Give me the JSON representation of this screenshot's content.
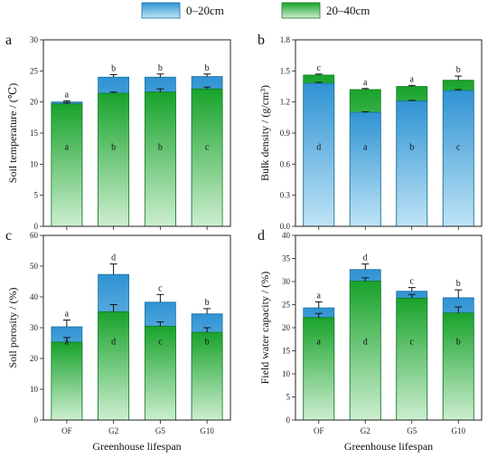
{
  "colors": {
    "shallow_top": "#2f93d3",
    "shallow_bottom": "#bfe4f6",
    "deep_top": "#18a32b",
    "deep_bottom": "#cdeed0",
    "error_bar": "#111111",
    "axis": "#222222"
  },
  "legend": {
    "shallow_label": "0–20cm",
    "deep_label": "20–40cm"
  },
  "chart_data": [
    {
      "type": "bar",
      "panel": "a",
      "categories": [
        "OF",
        "G2",
        "G5",
        "G10"
      ],
      "ylabel": "Soil temperature / (℃)",
      "xlabel": "",
      "ylim": [
        0,
        30
      ],
      "yticks": [
        "0",
        "5",
        "10",
        "15",
        "20",
        "25",
        "30"
      ],
      "series": [
        {
          "name": "0–20cm",
          "values": [
            20.0,
            24.0,
            24.0,
            24.1
          ],
          "errors": [
            0.2,
            0.4,
            0.5,
            0.4
          ],
          "letters": [
            "a",
            "b",
            "b",
            "b"
          ]
        },
        {
          "name": "20–40cm",
          "values": [
            19.7,
            21.4,
            21.6,
            22.1
          ],
          "errors": [
            0.2,
            0.2,
            0.5,
            0.3
          ],
          "letters": [
            "a",
            "b",
            "b",
            "c"
          ]
        }
      ]
    },
    {
      "type": "bar",
      "panel": "b",
      "categories": [
        "OF",
        "G2",
        "G5",
        "G10"
      ],
      "ylabel": "Bulk density / (g/cm³)",
      "xlabel": "",
      "ylim": [
        0,
        1.8
      ],
      "yticks": [
        "0.0",
        "0.3",
        "0.6",
        "0.9",
        "1.2",
        "1.5",
        "1.8"
      ],
      "series": [
        {
          "name": "0–20cm",
          "values": [
            1.38,
            1.1,
            1.21,
            1.31
          ],
          "errors": [
            0.01,
            0.005,
            0.005,
            0.01
          ],
          "letters": [
            "d",
            "a",
            "b",
            "c"
          ]
        },
        {
          "name": "20–40cm",
          "values": [
            1.46,
            1.32,
            1.35,
            1.41
          ],
          "errors": [
            0.01,
            0.01,
            0.01,
            0.04
          ],
          "letters": [
            "c",
            "a",
            "a",
            "b"
          ]
        }
      ]
    },
    {
      "type": "bar",
      "panel": "c",
      "categories": [
        "OF",
        "G2",
        "G5",
        "G10"
      ],
      "ylabel": "Soil porosity / (%)",
      "xlabel": "Greenhouse lifespan",
      "ylim": [
        0,
        60
      ],
      "yticks": [
        "0",
        "10",
        "20",
        "30",
        "40",
        "50",
        "60"
      ],
      "series": [
        {
          "name": "0–20cm",
          "values": [
            30.3,
            47.3,
            38.3,
            34.5
          ],
          "errors": [
            2.2,
            3.4,
            2.5,
            1.7
          ],
          "letters": [
            "a",
            "d",
            "c",
            "b"
          ]
        },
        {
          "name": "20–40cm",
          "values": [
            25.3,
            35.2,
            30.5,
            28.5
          ],
          "errors": [
            1.5,
            2.3,
            1.4,
            1.5
          ],
          "letters": [
            "a",
            "d",
            "c",
            "b"
          ]
        }
      ]
    },
    {
      "type": "bar",
      "panel": "d",
      "categories": [
        "OF",
        "G2",
        "G5",
        "G10"
      ],
      "ylabel": "Field water capacity / (%)",
      "xlabel": "Greenhouse lifespan",
      "ylim": [
        0,
        40
      ],
      "yticks": [
        "0",
        "5",
        "10",
        "15",
        "20",
        "25",
        "30",
        "35",
        "40"
      ],
      "series": [
        {
          "name": "0–20cm",
          "values": [
            24.3,
            32.6,
            27.9,
            26.5
          ],
          "errors": [
            1.3,
            1.2,
            0.8,
            1.7
          ],
          "letters": [
            "a",
            "d",
            "c",
            "b"
          ]
        },
        {
          "name": "20–40cm",
          "values": [
            22.2,
            30.1,
            26.4,
            23.2
          ],
          "errors": [
            0.9,
            0.7,
            0.8,
            1.3
          ],
          "letters": [
            "a",
            "d",
            "c",
            "b"
          ]
        }
      ]
    }
  ]
}
